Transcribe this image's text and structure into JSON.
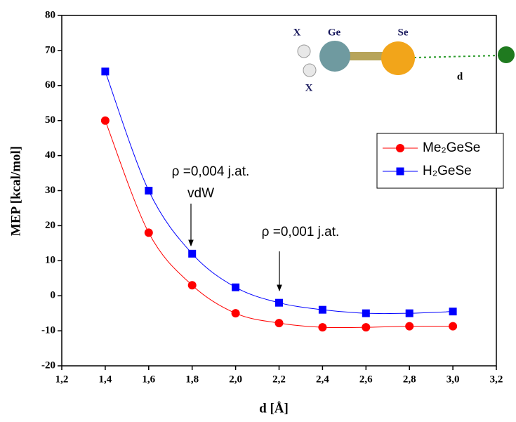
{
  "chart_data": {
    "type": "line",
    "x_label": "d [Å]",
    "y_label": "MEP [kcal/mol]",
    "x": [
      1.4,
      1.6,
      1.8,
      2.0,
      2.2,
      2.4,
      2.6,
      2.8,
      3.0
    ],
    "series": [
      {
        "name": "Me₂GeSe",
        "color": "#ff0000",
        "marker": "circle",
        "values": [
          50,
          18,
          3,
          -5,
          -7.8,
          -9,
          -9,
          -8.7,
          -8.7
        ]
      },
      {
        "name": "H₂GeSe",
        "color": "#0000ff",
        "marker": "square",
        "values": [
          64,
          30,
          12,
          2.4,
          -2,
          -4,
          -5,
          -5,
          -4.5
        ]
      }
    ],
    "xlim": [
      1.2,
      3.2
    ],
    "xticks": [
      {
        "value": 1.2,
        "label": "1,2"
      },
      {
        "value": 1.4,
        "label": "1,4"
      },
      {
        "value": 1.6,
        "label": "1,6"
      },
      {
        "value": 1.8,
        "label": "1,8"
      },
      {
        "value": 2.0,
        "label": "2,0"
      },
      {
        "value": 2.2,
        "label": "2,2"
      },
      {
        "value": 2.4,
        "label": "2,4"
      },
      {
        "value": 2.6,
        "label": "2,6"
      },
      {
        "value": 2.8,
        "label": "2,8"
      },
      {
        "value": 3.0,
        "label": "3,0"
      },
      {
        "value": 3.2,
        "label": "3,2"
      }
    ],
    "ylim": [
      -20,
      80
    ],
    "yticks": [
      -20,
      -10,
      0,
      10,
      20,
      30,
      40,
      50,
      60,
      70,
      80
    ],
    "legend": "upper right",
    "annotations": [
      "ρ =0,004 j.at.",
      "vdW",
      "ρ =0,001 j.at."
    ],
    "inset_labels": [
      "X",
      "Ge",
      "Se",
      "X",
      "d"
    ]
  }
}
